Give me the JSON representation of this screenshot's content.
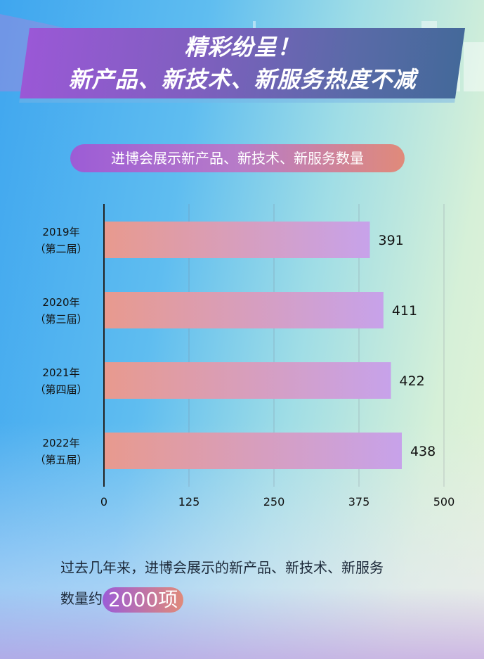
{
  "header": {
    "title_line1": "精彩纷呈！",
    "title_line2": "新产品、新技术、新服务热度不减"
  },
  "chart_data": {
    "type": "bar",
    "orientation": "horizontal",
    "title": "进博会展示新产品、新技术、新服务数量",
    "categories": [
      [
        "2019年",
        "（第二届）"
      ],
      [
        "2020年",
        "（第三届）"
      ],
      [
        "2021年",
        "（第四届）"
      ],
      [
        "2022年",
        "（第五届）"
      ]
    ],
    "values": [
      391,
      411,
      422,
      438
    ],
    "xlim": [
      0,
      500
    ],
    "xticks": [
      "0",
      "125",
      "250",
      "375",
      "500"
    ],
    "grid": true,
    "colors": {
      "bar_start": "#e89a8e",
      "bar_end": "#c7a2ea"
    }
  },
  "footer": {
    "note_line1": "过去几年来，进博会展示的新产品、新技术、新服务",
    "note_prefix": "数量约",
    "note_highlight": "2000项"
  }
}
